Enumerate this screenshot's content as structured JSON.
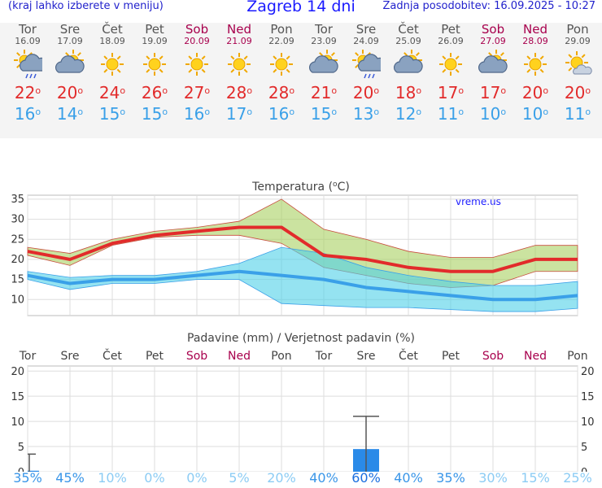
{
  "header": {
    "menu_hint": "(kraj lahko izberete v meniju)",
    "title": "Zagreb 14 dni",
    "updated": "Zadnja posodobitev: 16.09.2025 - 10:27"
  },
  "days": [
    {
      "name": "Tor",
      "date": "16.09",
      "weekend": false,
      "icon": "rain-sun-icon",
      "max": "22",
      "min": "16"
    },
    {
      "name": "Sre",
      "date": "17.09",
      "weekend": false,
      "icon": "partly-cloudy-icon",
      "max": "20",
      "min": "14"
    },
    {
      "name": "Čet",
      "date": "18.09",
      "weekend": false,
      "icon": "sun-icon",
      "max": "24",
      "min": "15"
    },
    {
      "name": "Pet",
      "date": "19.09",
      "weekend": false,
      "icon": "sun-icon",
      "max": "26",
      "min": "15"
    },
    {
      "name": "Sob",
      "date": "20.09",
      "weekend": true,
      "icon": "sun-icon",
      "max": "27",
      "min": "16"
    },
    {
      "name": "Ned",
      "date": "21.09",
      "weekend": true,
      "icon": "sun-icon",
      "max": "28",
      "min": "17"
    },
    {
      "name": "Pon",
      "date": "22.09",
      "weekend": false,
      "icon": "sun-icon",
      "max": "28",
      "min": "16"
    },
    {
      "name": "Tor",
      "date": "23.09",
      "weekend": false,
      "icon": "partly-cloudy-icon",
      "max": "21",
      "min": "15"
    },
    {
      "name": "Sre",
      "date": "24.09",
      "weekend": false,
      "icon": "rain-sun-icon",
      "max": "20",
      "min": "13"
    },
    {
      "name": "Čet",
      "date": "25.09",
      "weekend": false,
      "icon": "partly-cloudy-icon",
      "max": "18",
      "min": "12"
    },
    {
      "name": "Pet",
      "date": "26.09",
      "weekend": false,
      "icon": "sun-icon",
      "max": "17",
      "min": "11"
    },
    {
      "name": "Sob",
      "date": "27.09",
      "weekend": true,
      "icon": "partly-cloudy-icon",
      "max": "17",
      "min": "10"
    },
    {
      "name": "Ned",
      "date": "28.09",
      "weekend": true,
      "icon": "sun-icon",
      "max": "20",
      "min": "10"
    },
    {
      "name": "Pon",
      "date": "29.09",
      "weekend": false,
      "icon": "sun-cloud-icon",
      "max": "20",
      "min": "11"
    }
  ],
  "colors": {
    "max": "#e22b2b",
    "min": "#3aa0e8",
    "weekend": "#a8004d",
    "max_band": "#a8d060",
    "min_band": "#4fd0e8",
    "bar": "#2a8ae8"
  },
  "chart_data": [
    {
      "type": "line",
      "title": "Temperatura (°C)",
      "watermark": "vreme.us",
      "ylim": [
        6,
        36
      ],
      "yticks": [
        10,
        15,
        20,
        25,
        30,
        35
      ],
      "grid": true,
      "series": [
        {
          "values": [
            22,
            20,
            24,
            26,
            27,
            28,
            28,
            21,
            20,
            18,
            17,
            17,
            20,
            20
          ]
        },
        {
          "values": [
            16,
            14,
            15,
            15,
            16,
            17,
            16,
            15,
            13,
            12,
            11,
            10,
            10,
            11
          ]
        }
      ],
      "bands": [
        {
          "low": [
            21,
            18.5,
            23.5,
            25.5,
            26,
            26,
            24,
            18,
            16,
            14,
            13,
            13.5,
            17,
            17
          ],
          "high": [
            23,
            21.5,
            25,
            27,
            28,
            29.5,
            35,
            27.5,
            25,
            22,
            20.5,
            20.5,
            23.5,
            23.5
          ]
        },
        {
          "low": [
            15,
            12.5,
            14,
            14,
            15,
            15,
            9,
            8.5,
            8,
            8,
            7.5,
            7,
            7,
            7.8
          ],
          "high": [
            17,
            15.5,
            16,
            16,
            17,
            19,
            23,
            21.5,
            18,
            16,
            14.5,
            13.5,
            13.5,
            14.5
          ]
        }
      ]
    },
    {
      "type": "bar",
      "title": "Padavine (mm) / Verjetnost padavin (%)",
      "categories": [
        "Tor",
        "Sre",
        "Čet",
        "Pet",
        "Sob",
        "Ned",
        "Pon",
        "Tor",
        "Sre",
        "Čet",
        "Pet",
        "Sob",
        "Ned",
        "Pon"
      ],
      "values": [
        0.2,
        0,
        0,
        0,
        0,
        0,
        0,
        0,
        4.5,
        0,
        0,
        0,
        0,
        0
      ],
      "error_high": [
        3.5,
        0,
        0,
        0,
        0,
        0,
        0,
        0,
        11,
        0,
        0,
        0,
        0,
        0
      ],
      "probability": [
        "35%",
        "45%",
        "10%",
        "0%",
        "0%",
        "5%",
        "20%",
        "40%",
        "60%",
        "40%",
        "35%",
        "30%",
        "15%",
        "25%"
      ],
      "ylim": [
        0,
        21
      ],
      "yticks": [
        0,
        5,
        10,
        15,
        20
      ]
    }
  ]
}
